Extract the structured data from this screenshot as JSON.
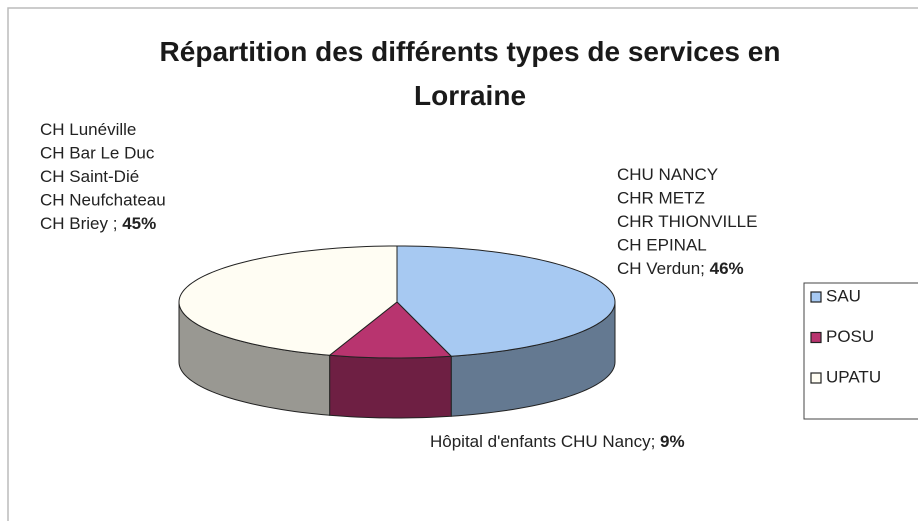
{
  "chart_data": {
    "type": "pie",
    "title": "Répartition des différents types de services en Lorraine",
    "categories": [
      "SAU",
      "POSU",
      "UPATU"
    ],
    "values": [
      46,
      9,
      45
    ],
    "value_labels": [
      "46%",
      "9%",
      "45%"
    ],
    "colors": [
      "#a7c9f2",
      "#b8346f",
      "#fffdf3"
    ],
    "slice_labels": [
      [
        "CHU NANCY",
        "CHR METZ",
        "CHR THIONVILLE",
        "CH EPINAL",
        "CH Verdun;"
      ],
      [
        "Hôpital d'enfants CHU Nancy;"
      ],
      [
        "CH Lunéville",
        "CH Bar Le Duc",
        "CH Saint-Dié",
        "CH Neufchateau",
        "CH Briey ;"
      ]
    ],
    "legend": "right"
  }
}
